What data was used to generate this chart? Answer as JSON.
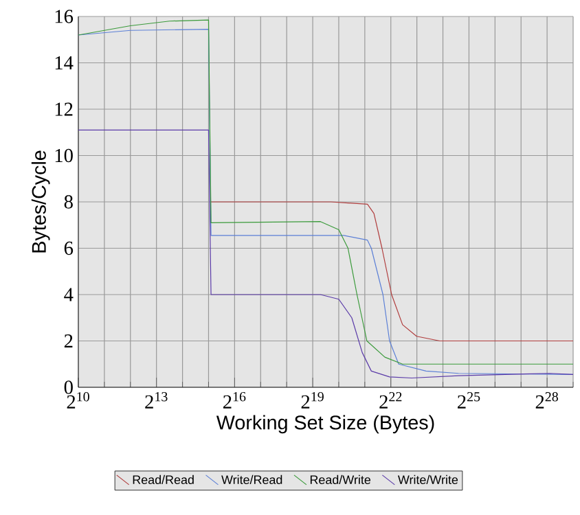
{
  "chart_data": {
    "type": "line",
    "xlabel": "Working Set Size (Bytes)",
    "ylabel": "Bytes/Cycle",
    "log": "x",
    "grid": true,
    "legend": "bottom",
    "line_style": "solid",
    "xlim": [
      1024,
      536870912
    ],
    "ylim": [
      0,
      16
    ],
    "xticks": [
      {
        "value": 1024,
        "label": "2$^{10}$"
      },
      {
        "value": 2048,
        "label": null
      },
      {
        "value": 4096,
        "label": null
      },
      {
        "value": 8192,
        "label": "2$^{13}$"
      },
      {
        "value": 16384,
        "label": null
      },
      {
        "value": 32768,
        "label": null
      },
      {
        "value": 65536,
        "label": "2$^{16}$"
      },
      {
        "value": 131072,
        "label": null
      },
      {
        "value": 262144,
        "label": null
      },
      {
        "value": 524288,
        "label": "2$^{19}$"
      },
      {
        "value": 1048576,
        "label": null
      },
      {
        "value": 2097152,
        "label": null
      },
      {
        "value": 4194304,
        "label": "2$^{22}$"
      },
      {
        "value": 8388608,
        "label": null
      },
      {
        "value": 16777216,
        "label": null
      },
      {
        "value": 33554432,
        "label": "2$^{25}$"
      },
      {
        "value": 67108864,
        "label": null
      },
      {
        "value": 134217728,
        "label": null
      },
      {
        "value": 268435456,
        "label": "2$^{28}$"
      },
      {
        "value": 536870912,
        "label": null
      }
    ],
    "yticks": [
      0,
      2,
      4,
      6,
      8,
      10,
      12,
      14,
      16
    ],
    "series": [
      {
        "name": "Read/Read",
        "color": "#b03c3c",
        "x": [
          35000,
          852000,
          2250000,
          2674000,
          3314000,
          4282000,
          5730000,
          8330000,
          15440000,
          536870912
        ],
        "values": [
          8.0,
          8.0,
          7.9,
          7.5,
          6.0,
          4.0,
          2.7,
          2.2,
          2.0,
          2.0
        ]
      },
      {
        "name": "Write/Read",
        "color": "#5b7fd6",
        "x": [
          1024,
          4096,
          32768,
          35000,
          1205000,
          2250000,
          2494000,
          3400000,
          4052000,
          5165000,
          10700000,
          25430000,
          536870912
        ],
        "values": [
          15.2,
          15.4,
          15.45,
          6.55,
          6.55,
          6.35,
          6.0,
          4.0,
          2.0,
          1.0,
          0.7,
          0.6,
          0.55
        ]
      },
      {
        "name": "Read/Write",
        "color": "#3a9a3a",
        "x": [
          1024,
          4096,
          11585,
          32768,
          35000,
          645000,
          1048576,
          1341000,
          1703000,
          2217000,
          3576000,
          5730000,
          536870912
        ],
        "values": [
          15.2,
          15.6,
          15.8,
          15.85,
          7.1,
          7.15,
          6.8,
          6.0,
          4.0,
          2.0,
          1.3,
          1.0,
          1.0
        ]
      },
      {
        "name": "Write/Write",
        "color": "#5a3aa8",
        "x": [
          1024,
          32768,
          35000,
          645000,
          1048576,
          1483000,
          1958000,
          2494000,
          4052000,
          7303000,
          25430000,
          287800000,
          536870912
        ],
        "values": [
          11.1,
          11.1,
          4.0,
          4.0,
          3.8,
          3.0,
          1.5,
          0.7,
          0.45,
          0.4,
          0.5,
          0.6,
          0.55
        ]
      }
    ]
  }
}
